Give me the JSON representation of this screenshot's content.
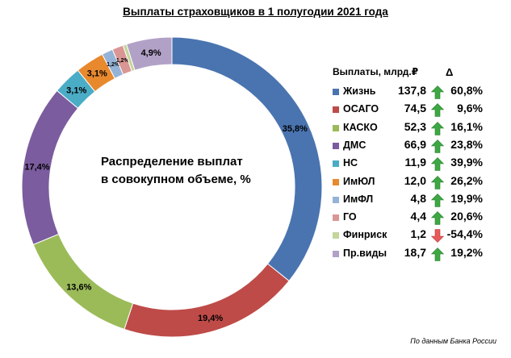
{
  "chart_data": {
    "type": "pie",
    "title": "Выплаты страховщиков в 1 полугодии 2021 года",
    "center_label": [
      "Распределение выплат",
      "в совокупном объеме, %"
    ],
    "slices": [
      {
        "name": "Жизнь",
        "share": 35.8,
        "label": "35,8%",
        "color": "#4A74B0",
        "payout": "137,8",
        "change": "60,8%",
        "direction": "up"
      },
      {
        "name": "ОСАГО",
        "share": 19.4,
        "label": "19,4%",
        "color": "#BE4B48",
        "payout": "74,5",
        "change": "9,6%",
        "direction": "up"
      },
      {
        "name": "КАСКО",
        "share": 13.6,
        "label": "13,6%",
        "color": "#9BBB59",
        "payout": "52,3",
        "change": "16,1%",
        "direction": "up"
      },
      {
        "name": "ДМС",
        "share": 17.4,
        "label": "17,4%",
        "color": "#7B5C9E",
        "payout": "66,9",
        "change": "23,8%",
        "direction": "up"
      },
      {
        "name": "НС",
        "share": 3.1,
        "label": "3,1%",
        "color": "#4BACC6",
        "payout": "11,9",
        "change": "39,9%",
        "direction": "up"
      },
      {
        "name": "ИмЮЛ",
        "share": 3.1,
        "label": "3,1%",
        "color": "#E8892E",
        "payout": "12,0",
        "change": "26,2%",
        "direction": "up"
      },
      {
        "name": "ИмФЛ",
        "share": 1.2,
        "label": "1,2%",
        "color": "#95B3D7",
        "payout": "4,8",
        "change": "19,9%",
        "direction": "up"
      },
      {
        "name": "ГО",
        "share": 1.2,
        "label": "1,2%",
        "color": "#D99694",
        "payout": "4,4",
        "change": "20,6%",
        "direction": "up"
      },
      {
        "name": "Финриск",
        "share": 0.4,
        "label": "",
        "color": "#C3D69B",
        "payout": "1,2",
        "change": "-54,4%",
        "direction": "down"
      },
      {
        "name": "Пр.виды",
        "share": 4.9,
        "label": "4,9%",
        "color": "#B2A1C7",
        "payout": "18,7",
        "change": "19,2%",
        "direction": "up"
      }
    ],
    "legend_header": {
      "payout": "Выплаты, млрд.₽",
      "change": "Δ"
    },
    "legend_position": "right"
  },
  "source_note": "По данным Банка России",
  "colors": {
    "up_arrow": "#3DA843",
    "down_arrow": "#E85A5A"
  }
}
